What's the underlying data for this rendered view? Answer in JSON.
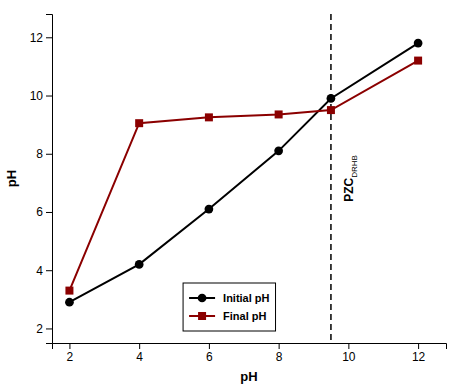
{
  "chart_data": {
    "type": "line",
    "x": [
      2,
      4,
      6,
      8,
      9.5,
      12
    ],
    "series": [
      {
        "name": "Initial pH",
        "color": "#000000",
        "marker": "circle",
        "values": [
          2.9,
          4.2,
          6.1,
          8.1,
          9.9,
          11.8
        ]
      },
      {
        "name": "Final pH",
        "color": "#8B0000",
        "marker": "square",
        "values": [
          3.3,
          9.05,
          9.25,
          9.35,
          9.5,
          11.2
        ]
      }
    ],
    "x_label": "pH",
    "y_label": "pH",
    "xlim": [
      1.5,
      12.8
    ],
    "ylim": [
      1.5,
      12.8
    ],
    "xticks": [
      2,
      4,
      6,
      8,
      10,
      12
    ],
    "yticks": [
      2,
      4,
      6,
      8,
      10,
      12
    ],
    "annotations": [
      {
        "x": 9.5,
        "text": "PZC",
        "subtext": "DRHB",
        "line_style": "dashed"
      }
    ],
    "legend": "bottom",
    "grid": false
  }
}
